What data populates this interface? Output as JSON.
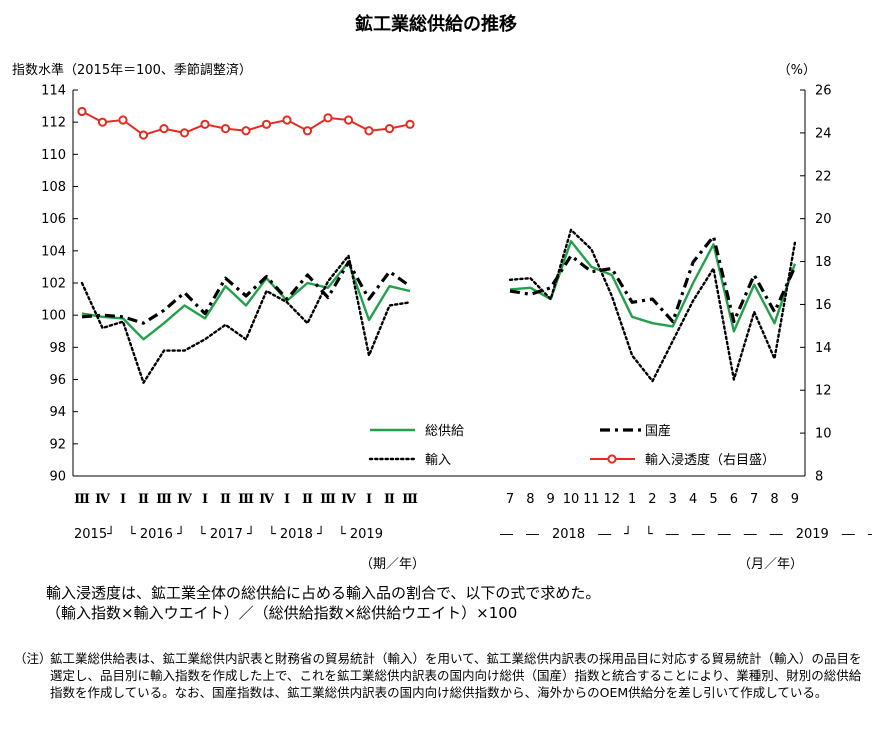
{
  "title": "鉱工業総供給の推移",
  "chart_data": {
    "type": "line",
    "title": "鉱工業総供給の推移",
    "ylabel_left": "指数水準（2015年＝100、季節調整済）",
    "ylabel_right": "（%）",
    "ylim_left": [
      90,
      114
    ],
    "yticks_left": [
      "90",
      "92",
      "94",
      "96",
      "98",
      "100",
      "102",
      "104",
      "106",
      "108",
      "110",
      "112",
      "114"
    ],
    "ylim_right": [
      8,
      26
    ],
    "yticks_right": [
      "8",
      "10",
      "12",
      "14",
      "16",
      "18",
      "20",
      "22",
      "24",
      "26"
    ],
    "grid": false,
    "legend_position": "bottom-inside",
    "quarterly": {
      "categories": [
        "2015-III",
        "2015-IV",
        "2016-I",
        "2016-II",
        "2016-III",
        "2016-IV",
        "2017-I",
        "2017-II",
        "2017-III",
        "2017-IV",
        "2018-I",
        "2018-II",
        "2018-III",
        "2018-IV",
        "2019-I",
        "2019-II",
        "2019-III"
      ],
      "tick_labels": [
        "Ⅲ",
        "Ⅳ",
        "Ⅰ",
        "Ⅱ",
        "Ⅲ",
        "Ⅳ",
        "Ⅰ",
        "Ⅱ",
        "Ⅲ",
        "Ⅳ",
        "Ⅰ",
        "Ⅱ",
        "Ⅲ",
        "Ⅳ",
        "Ⅰ",
        "Ⅱ",
        "Ⅲ"
      ],
      "series": [
        {
          "name": "総供給",
          "axis": "left",
          "color": "#22a04b",
          "style": "solid",
          "values": [
            100.1,
            99.9,
            99.8,
            98.5,
            99.5,
            100.6,
            99.8,
            101.8,
            100.6,
            102.3,
            100.9,
            102.0,
            101.7,
            103.3,
            99.7,
            101.8,
            101.5
          ]
        },
        {
          "name": "国産",
          "axis": "left",
          "color": "#000000",
          "style": "dashdot",
          "values": [
            99.9,
            100.0,
            99.9,
            99.5,
            100.3,
            101.4,
            100.1,
            102.3,
            101.2,
            102.4,
            101.0,
            102.5,
            101.1,
            103.3,
            101.0,
            102.7,
            101.8
          ]
        },
        {
          "name": "輸入",
          "axis": "left",
          "color": "#000000",
          "style": "dotted",
          "values": [
            102.0,
            99.2,
            99.6,
            95.8,
            97.8,
            97.8,
            98.5,
            99.4,
            98.5,
            101.5,
            100.8,
            99.5,
            102.1,
            103.7,
            97.5,
            100.6,
            100.8
          ]
        },
        {
          "name": "輸入浸透度（右目盛）",
          "axis": "right",
          "color": "#e52b23",
          "style": "marker",
          "values": [
            25.0,
            24.5,
            24.6,
            23.9,
            24.2,
            24.0,
            24.4,
            24.2,
            24.1,
            24.4,
            24.6,
            24.1,
            24.7,
            24.6,
            24.1,
            24.2,
            24.4
          ]
        }
      ],
      "year_row": "2015┘　└ 2016 ┘　└ 2017 ┘　└ 2018 ┘　└ 2019",
      "unit_label": "（期／年）"
    },
    "monthly": {
      "categories": [
        "2018-07",
        "2018-08",
        "2018-09",
        "2018-10",
        "2018-11",
        "2018-12",
        "2019-01",
        "2019-02",
        "2019-03",
        "2019-04",
        "2019-05",
        "2019-06",
        "2019-07",
        "2019-08",
        "2019-09"
      ],
      "tick_labels": [
        "7",
        "8",
        "9",
        "10",
        "11",
        "12",
        "1",
        "2",
        "3",
        "4",
        "5",
        "6",
        "7",
        "8",
        "9"
      ],
      "series": [
        {
          "name": "総供給",
          "axis": "left",
          "color": "#22a04b",
          "style": "solid",
          "values": [
            101.6,
            101.7,
            101.0,
            104.6,
            103.0,
            102.5,
            99.9,
            99.5,
            99.3,
            102.0,
            104.4,
            99.0,
            101.9,
            99.5,
            103.2
          ]
        },
        {
          "name": "国産",
          "axis": "left",
          "color": "#000000",
          "style": "dashdot",
          "values": [
            101.5,
            101.3,
            101.7,
            103.7,
            102.7,
            102.9,
            100.8,
            101.0,
            99.6,
            103.3,
            104.9,
            99.6,
            102.5,
            100.2,
            103.0
          ]
        },
        {
          "name": "輸入",
          "axis": "left",
          "color": "#000000",
          "style": "dotted",
          "values": [
            102.2,
            102.3,
            101.0,
            105.3,
            104.1,
            101.2,
            97.5,
            95.9,
            98.4,
            100.9,
            102.9,
            96.0,
            100.2,
            97.3,
            104.5
          ]
        }
      ],
      "year_row": "―　―　2018　―　┘　└　―　―　―　―　―　2019　―　―",
      "unit_label": "（月／年）"
    },
    "legend": [
      {
        "name": "総供給",
        "color": "#22a04b",
        "style": "solid"
      },
      {
        "name": "国産",
        "color": "#000000",
        "style": "dashdot"
      },
      {
        "name": "輸入",
        "color": "#000000",
        "style": "dotted"
      },
      {
        "name": "輸入浸透度（右目盛）",
        "color": "#e52b23",
        "style": "marker"
      }
    ]
  },
  "notes": {
    "line1": "輸入浸透度は、鉱工業全体の総供給に占める輸入品の割合で、以下の式で求めた。",
    "line2": "（輸入指数×輸入ウエイト）／（総供給指数×総供給ウエイト）×100",
    "footnote_label": "（注）",
    "footnote_text": "鉱工業総供給表は、鉱工業総供内訳表と財務省の貿易統計（輸入）を用いて、鉱工業総供内訳表の採用品目に対応する貿易統計（輸入）の品目を選定し、品目別に輸入指数を作成した上で、これを鉱工業総供内訳表の国内向け総供（国産）指数と統合することにより、業種別、財別の総供給指数を作成している。なお、国産指数は、鉱工業総供内訳表の国内向け総供指数から、海外からのOEM供給分を差し引いて作成している。"
  }
}
